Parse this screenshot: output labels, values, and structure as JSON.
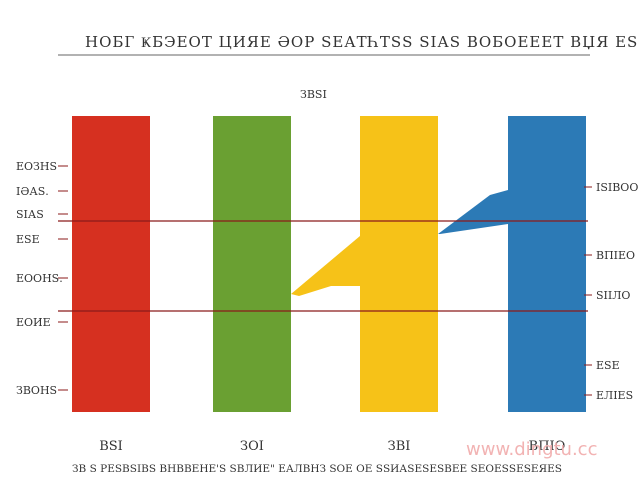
{
  "watermark": "www.dingtu.cc",
  "chart_data": {
    "type": "bar",
    "title": "НОБГ ҜБЭЕОТ ЦИЯЕ ӘОР ЅЕАТҺТЅЅ ЅІАЅ ВОБОЕЕЕТ ВЏЯ ЕЅ ЅПЅО",
    "subtitle": "ЗВЅІ",
    "categories": [
      "ВЅІ",
      "ЗОІ",
      "ЗВІ",
      "ВПІО"
    ],
    "values": [
      1,
      1,
      1,
      1
    ],
    "colors": [
      "#d63020",
      "#6aa032",
      "#f6c218",
      "#2c7ab6"
    ],
    "left_labels": [
      "ЕОЗНЅ",
      "ІӘАЅ.",
      "ЅІАЅ",
      "ЕЅЕ",
      "ЕООНЅ.",
      "ЕОИЕ",
      "ЗВОНЅ"
    ],
    "right_labels": [
      "ІЅІВОО",
      "ВПІЕО",
      "ЅІІЛО",
      "ЕЅЕ",
      "ЕЛІЕЅ"
    ],
    "footer": "ЗВ Ѕ РЕЅВЅІВЅ ВНВВЕНЕ'Ѕ ЅВЛИЕ\" ЕАЛВНЗ ЅОЕ ОЕ ЅЅИАЅЕЅЕЅВЕЕ ЅЕОЕЅЅЕЅЕЯЕЅ",
    "reference_lines": 2,
    "grid": false
  }
}
